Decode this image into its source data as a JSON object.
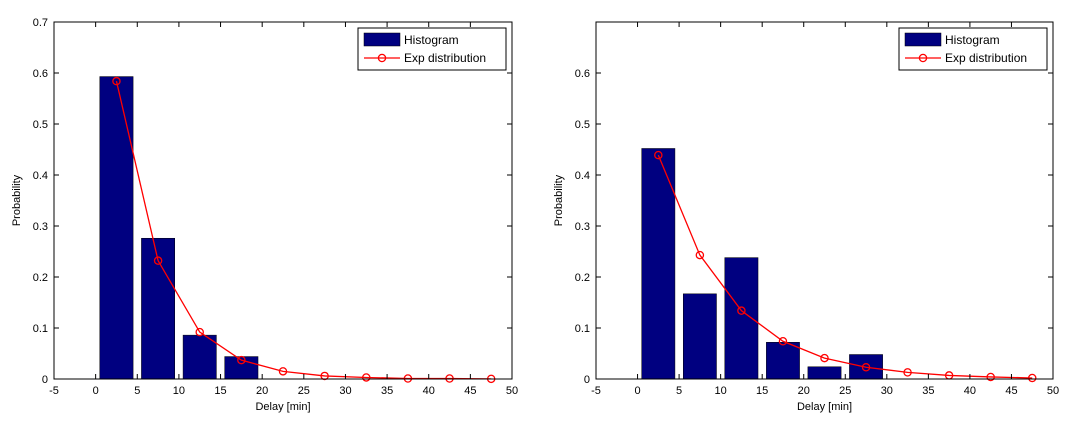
{
  "colors": {
    "bar": "#000080",
    "line": "#ff0000",
    "axis": "#000000",
    "background": "#ffffff"
  },
  "chart_data": [
    {
      "type": "bar",
      "xlabel": "Delay [min]",
      "ylabel": "Probability",
      "xlim": [
        -5,
        50
      ],
      "ylim": [
        0,
        0.7
      ],
      "x_ticks": [
        "-5",
        "0",
        "5",
        "10",
        "15",
        "20",
        "25",
        "30",
        "35",
        "40",
        "45",
        "50"
      ],
      "y_ticks": [
        "0",
        "0.1",
        "0.2",
        "0.3",
        "0.4",
        "0.5",
        "0.6",
        "0.7"
      ],
      "legend": {
        "position": "top-right",
        "entries": [
          "Histogram",
          "Exp distribution"
        ]
      },
      "series": [
        {
          "name": "Histogram",
          "type": "bar",
          "x": [
            2.5,
            7.5,
            12.5,
            17.5
          ],
          "values": [
            0.593,
            0.276,
            0.086,
            0.044
          ]
        },
        {
          "name": "Exp distribution",
          "type": "line",
          "marker": "circle",
          "x": [
            2.5,
            7.5,
            12.5,
            17.5,
            22.5,
            27.5,
            32.5,
            37.5,
            42.5,
            47.5
          ],
          "values": [
            0.584,
            0.232,
            0.092,
            0.037,
            0.015,
            0.006,
            0.003,
            0.001,
            0.001,
            0.0003
          ]
        }
      ]
    },
    {
      "type": "bar",
      "xlabel": "Delay [min]",
      "ylabel": "Probability",
      "xlim": [
        -5,
        50
      ],
      "ylim": [
        0,
        0.7
      ],
      "x_ticks": [
        "-5",
        "0",
        "5",
        "10",
        "15",
        "20",
        "25",
        "30",
        "35",
        "40",
        "45",
        "50"
      ],
      "y_ticks": [
        "0",
        "0.1",
        "0.2",
        "0.3",
        "0.4",
        "0.5",
        "0.6",
        ""
      ],
      "legend": {
        "position": "top-right",
        "entries": [
          "Histogram",
          "Exp distribution"
        ]
      },
      "series": [
        {
          "name": "Histogram",
          "type": "bar",
          "x": [
            2.5,
            7.5,
            12.5,
            17.5,
            22.5,
            27.5
          ],
          "values": [
            0.452,
            0.167,
            0.238,
            0.072,
            0.024,
            0.048
          ]
        },
        {
          "name": "Exp distribution",
          "type": "line",
          "marker": "circle",
          "x": [
            2.5,
            7.5,
            12.5,
            17.5,
            22.5,
            27.5,
            32.5,
            37.5,
            42.5,
            47.5
          ],
          "values": [
            0.439,
            0.243,
            0.134,
            0.074,
            0.041,
            0.023,
            0.013,
            0.007,
            0.004,
            0.002
          ]
        }
      ]
    }
  ]
}
